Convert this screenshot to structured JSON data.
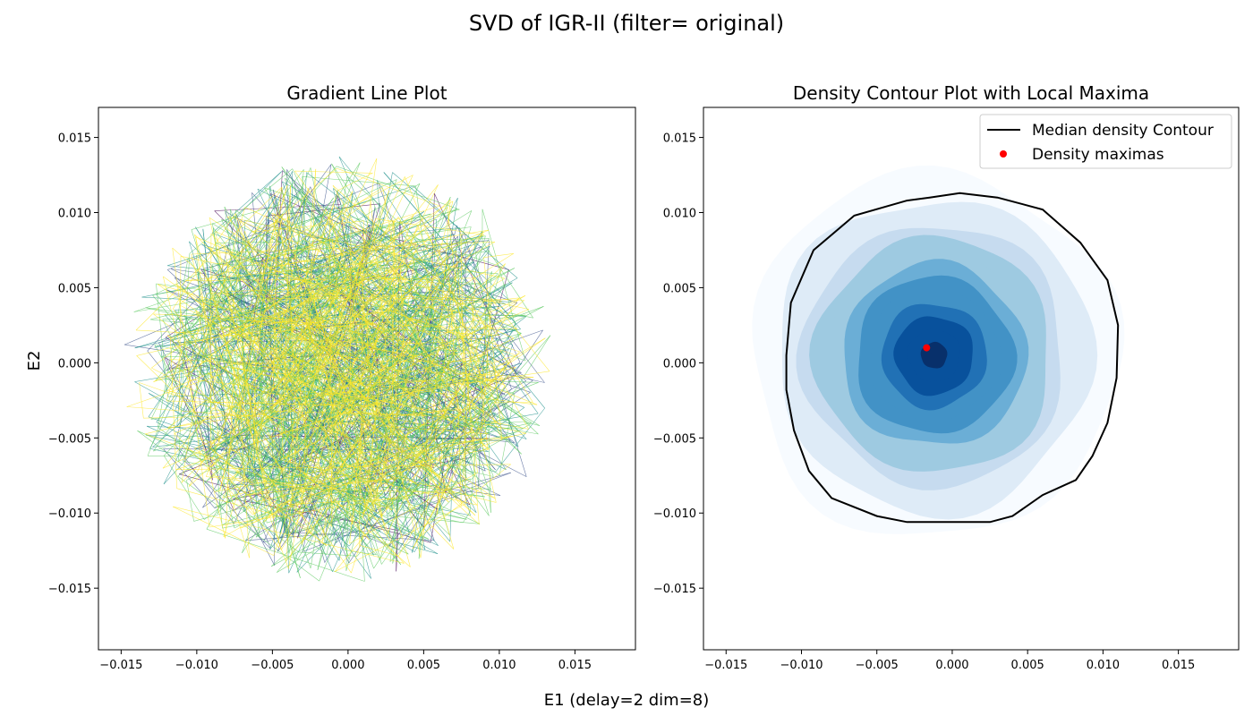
{
  "figure": {
    "suptitle": "SVD of IGR-II (filter= original)",
    "xlabel": "E1 (delay=2 dim=8)",
    "ylabel": "E2"
  },
  "chart_data": [
    {
      "type": "line",
      "title": "Gradient Line Plot",
      "xlim": [
        -0.0165,
        0.019
      ],
      "ylim": [
        -0.0191,
        0.017
      ],
      "xticks": [
        -0.015,
        -0.01,
        -0.005,
        0.0,
        0.005,
        0.01,
        0.015
      ],
      "xtick_labels": [
        "−0.015",
        "−0.010",
        "−0.005",
        "0.000",
        "0.005",
        "0.010",
        "0.015"
      ],
      "yticks": [
        -0.015,
        -0.01,
        -0.005,
        0.0,
        0.005,
        0.01,
        0.015
      ],
      "ytick_labels": [
        "−0.015",
        "−0.010",
        "−0.005",
        "0.000",
        "0.005",
        "0.010",
        "0.015"
      ],
      "cloud": {
        "center": [
          -0.0005,
          -0.0005
        ],
        "radius_x": 0.0145,
        "radius_y": 0.0145
      },
      "colormap": [
        "#440154",
        "#3b528b",
        "#21918c",
        "#5ec962",
        "#fde725"
      ],
      "grid": false,
      "legend": null
    },
    {
      "type": "contour",
      "title": "Density Contour Plot with Local Maxima",
      "xlim": [
        -0.0165,
        0.019
      ],
      "ylim": [
        -0.0191,
        0.017
      ],
      "xticks": [
        -0.015,
        -0.01,
        -0.005,
        0.0,
        0.005,
        0.01,
        0.015
      ],
      "xtick_labels": [
        "−0.015",
        "−0.010",
        "−0.005",
        "0.000",
        "0.005",
        "0.010",
        "0.015"
      ],
      "yticks": [
        -0.015,
        -0.01,
        -0.005,
        0.0,
        0.005,
        0.01,
        0.015
      ],
      "ytick_labels": [
        "−0.015",
        "−0.010",
        "−0.005",
        "0.000",
        "0.005",
        "0.010",
        "0.015"
      ],
      "density_center": [
        -0.0012,
        0.0005
      ],
      "density_outer_radius": 0.0122,
      "median_contour": {
        "label": "Median density Contour",
        "color": "#000000",
        "points": [
          [
            -0.011,
            0.0005
          ],
          [
            -0.0107,
            0.004
          ],
          [
            -0.0092,
            0.0075
          ],
          [
            -0.0065,
            0.0098
          ],
          [
            -0.003,
            0.0108
          ],
          [
            -0.0015,
            0.011
          ],
          [
            0.0005,
            0.0113
          ],
          [
            0.003,
            0.011
          ],
          [
            0.006,
            0.0102
          ],
          [
            0.0085,
            0.008
          ],
          [
            0.0103,
            0.0055
          ],
          [
            0.011,
            0.0025
          ],
          [
            0.0109,
            -0.001
          ],
          [
            0.0103,
            -0.004
          ],
          [
            0.0093,
            -0.0062
          ],
          [
            0.0082,
            -0.0078
          ],
          [
            0.006,
            -0.0088
          ],
          [
            0.004,
            -0.0102
          ],
          [
            0.0025,
            -0.0106
          ],
          [
            0.0005,
            -0.0106
          ],
          [
            -0.0015,
            -0.0106
          ],
          [
            -0.003,
            -0.0106
          ],
          [
            -0.005,
            -0.0102
          ],
          [
            -0.008,
            -0.009
          ],
          [
            -0.0095,
            -0.0072
          ],
          [
            -0.0105,
            -0.0045
          ],
          [
            -0.011,
            -0.0018
          ]
        ]
      },
      "maxima": [
        {
          "label": "Density maximas",
          "x": -0.0017,
          "y": 0.001,
          "color": "#ff0000"
        }
      ],
      "colormap": [
        "#f7fbff",
        "#deebf7",
        "#c6dbef",
        "#9ecae1",
        "#6baed6",
        "#4292c6",
        "#2171b5",
        "#08519c",
        "#08306b"
      ],
      "legend_position": "upper-right",
      "grid": false
    }
  ]
}
